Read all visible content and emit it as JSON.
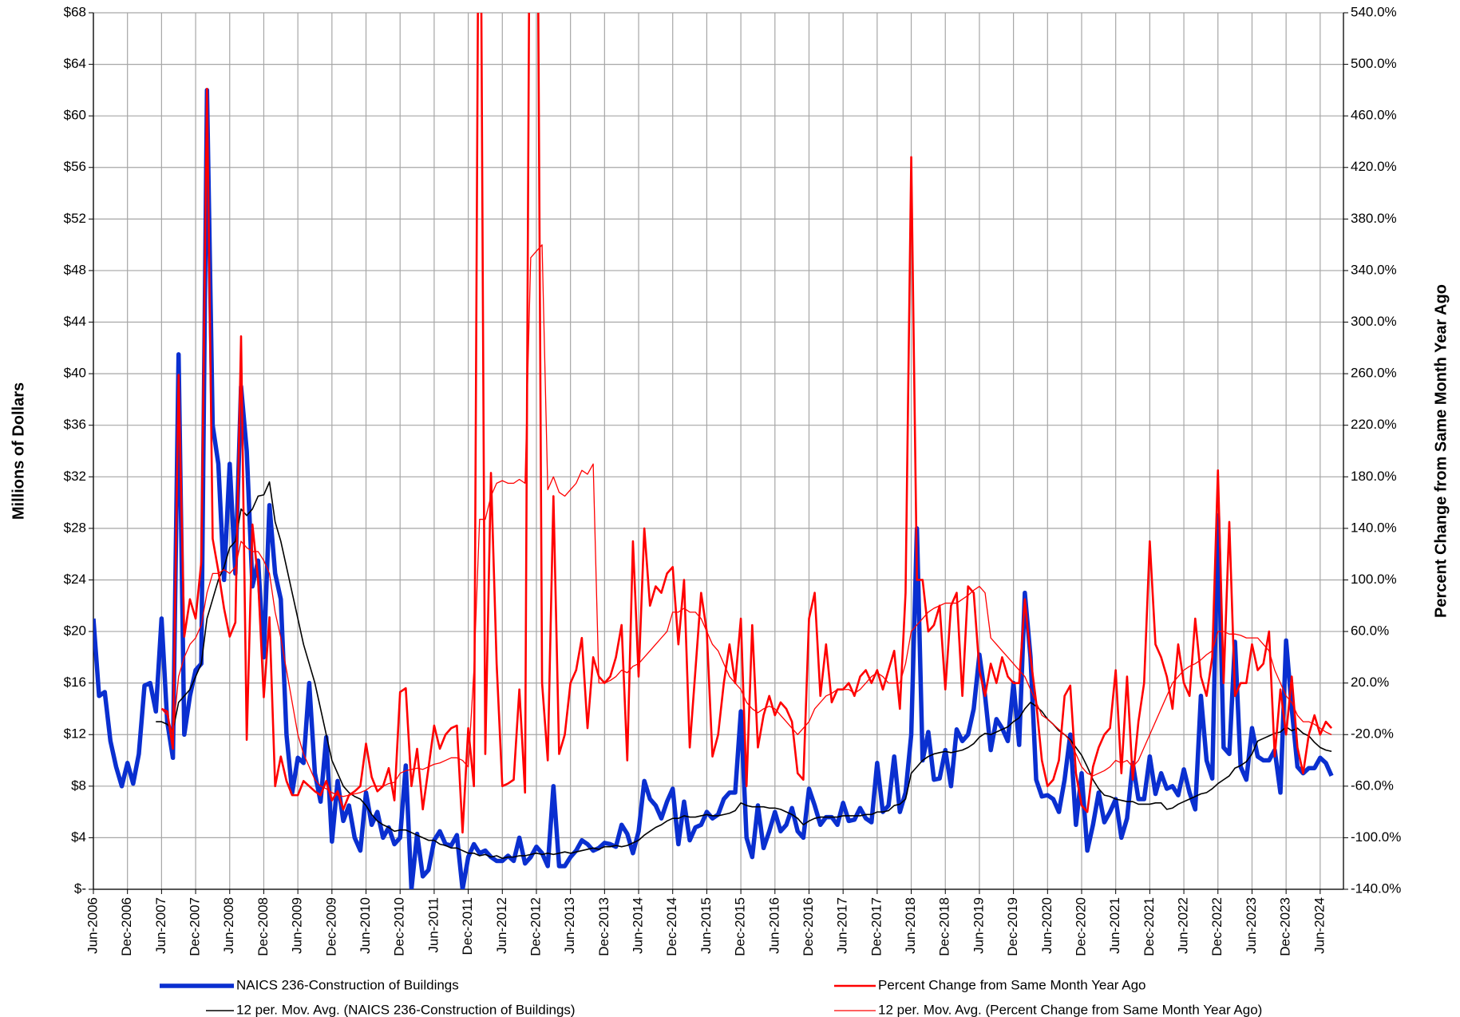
{
  "chart_data": {
    "type": "line",
    "ylabel": "Millions of Dollars",
    "y2label": "Percent Change from Same Month Year Ago",
    "categories": [
      "Jun-2006",
      null,
      null,
      null,
      null,
      null,
      "Dec-2006",
      null,
      null,
      null,
      null,
      null,
      "Jun-2007",
      null,
      null,
      null,
      null,
      null,
      "Dec-2007",
      null,
      null,
      null,
      null,
      null,
      "Jun-2008",
      null,
      null,
      null,
      null,
      null,
      "Dec-2008",
      null,
      null,
      null,
      null,
      null,
      "Jun-2009",
      null,
      null,
      null,
      null,
      null,
      "Dec-2009",
      null,
      null,
      null,
      null,
      null,
      "Jun-2010",
      null,
      null,
      null,
      null,
      null,
      "Dec-2010",
      null,
      null,
      null,
      null,
      null,
      "Jun-2011",
      null,
      null,
      null,
      null,
      null,
      "Dec-2011",
      null,
      null,
      null,
      null,
      null,
      "Jun-2012",
      null,
      null,
      null,
      null,
      null,
      "Dec-2012",
      null,
      null,
      null,
      null,
      null,
      "Jun-2013",
      null,
      null,
      null,
      null,
      null,
      "Dec-2013",
      null,
      null,
      null,
      null,
      null,
      "Jun-2014",
      null,
      null,
      null,
      null,
      null,
      "Dec-2014",
      null,
      null,
      null,
      null,
      null,
      "Jun-2015",
      null,
      null,
      null,
      null,
      null,
      "Dec-2015",
      null,
      null,
      null,
      null,
      null,
      "Jun-2016",
      null,
      null,
      null,
      null,
      null,
      "Dec-2016",
      null,
      null,
      null,
      null,
      null,
      "Jun-2017",
      null,
      null,
      null,
      null,
      null,
      "Dec-2017",
      null,
      null,
      null,
      null,
      null,
      "Jun-2018",
      null,
      null,
      null,
      null,
      null,
      "Dec-2018",
      null,
      null,
      null,
      null,
      null,
      "Jun-2019",
      null,
      null,
      null,
      null,
      null,
      "Dec-2019",
      null,
      null,
      null,
      null,
      null,
      "Jun-2020",
      null,
      null,
      null,
      null,
      null,
      "Dec-2020",
      null,
      null,
      null,
      null,
      null,
      "Jun-2021",
      null,
      null,
      null,
      null,
      null,
      "Dec-2021",
      null,
      null,
      null,
      null,
      null,
      "Jun-2022",
      null,
      null,
      null,
      null,
      null,
      "Dec-2022",
      null,
      null,
      null,
      null,
      null,
      "Jun-2023",
      null,
      null,
      null,
      null,
      null,
      "Dec-2023",
      null,
      null,
      null,
      null,
      null,
      "Jun-2024",
      null,
      null
    ],
    "series": [
      {
        "name": "NAICS 236-Construction of Buildings",
        "color": "#0a2fd0",
        "axis": "y",
        "values": [
          21,
          15,
          15.3,
          11.5,
          9.5,
          8,
          9.8,
          8.2,
          10.5,
          15.8,
          16,
          13.8,
          21,
          13,
          10.2,
          41.5,
          12,
          15,
          17,
          17.5,
          62,
          36,
          33,
          24,
          33,
          24.5,
          39,
          34,
          23.5,
          25.5,
          18,
          29.8,
          24.5,
          22.5,
          12,
          7.5,
          10.2,
          9.8,
          16,
          9,
          6.8,
          11.8,
          3.7,
          8.4,
          5.3,
          6.5,
          4,
          3,
          7.5,
          5,
          6,
          4,
          4.8,
          3.5,
          4,
          9.6,
          0,
          4.3,
          1,
          1.5,
          3.8,
          4.5,
          3.5,
          3.4,
          4.2,
          0,
          2.5,
          3.5,
          2.8,
          3,
          2.5,
          2.2,
          2.2,
          2.6,
          2.2,
          4,
          2,
          2.5,
          3.3,
          2.8,
          1.8,
          8,
          1.8,
          1.8,
          2.5,
          3,
          3.8,
          3.5,
          3,
          3.2,
          3.6,
          3.5,
          3.3,
          5,
          4.3,
          2.8,
          4.5,
          8.4,
          7,
          6.5,
          5.5,
          6.8,
          7.8,
          3.5,
          6.8,
          3.8,
          4.8,
          5,
          6,
          5.5,
          5.8,
          7,
          7.5,
          7.5,
          13.8,
          4,
          2.5,
          6.5,
          3.2,
          4.5,
          6,
          4.5,
          5,
          6.3,
          4.5,
          4,
          7.8,
          6.5,
          5,
          5.6,
          5.6,
          5,
          6.7,
          5.3,
          5.4,
          6.3,
          5.5,
          5.2,
          9.8,
          6,
          6.5,
          10.3,
          6,
          7.5,
          12,
          28,
          10,
          12.2,
          8.5,
          8.6,
          10.8,
          8,
          12.4,
          11.5,
          12,
          14,
          18.2,
          15,
          10.8,
          13.2,
          12.5,
          11.5,
          16,
          11.2,
          23,
          18,
          8.5,
          7.2,
          7.3,
          7,
          6,
          8.5,
          12,
          5,
          9,
          3,
          5,
          7.5,
          5.2,
          6,
          7,
          4,
          5.5,
          9.8,
          7,
          7,
          10.3,
          7.4,
          9,
          7.8,
          8,
          7.3,
          9.3,
          7.5,
          6.2,
          15,
          10,
          8.6,
          29,
          11,
          10.5,
          19.2,
          9.5,
          8.5,
          12.5,
          10.3,
          10,
          10,
          10.8,
          7.5,
          19.3,
          14,
          9.5,
          9,
          9.4,
          9.4,
          10.2,
          9.8,
          8.8
        ]
      },
      {
        "name": "12 per. Mov. Avg. (NAICS 236-Construction of Buildings)",
        "color": "#000000",
        "axis": "y",
        "values": [
          null,
          null,
          null,
          null,
          null,
          null,
          null,
          null,
          null,
          null,
          null,
          13,
          13,
          12.8,
          12.3,
          14.5,
          15,
          15.5,
          16.5,
          17.5,
          21,
          22.5,
          24,
          25,
          26.5,
          27,
          29.5,
          29,
          29.5,
          30.5,
          30.6,
          31.6,
          28.5,
          27,
          25,
          23,
          21,
          19,
          17.5,
          16,
          14,
          12,
          10,
          9,
          8,
          7.5,
          7.2,
          7,
          6.5,
          5.8,
          5.3,
          5,
          4.8,
          4.5,
          4.6,
          4.6,
          4.4,
          4.2,
          4,
          3.8,
          3.8,
          3.5,
          3.4,
          3.2,
          3.2,
          3,
          2.8,
          2.8,
          2.6,
          2.7,
          2.5,
          2.6,
          2.4,
          2.5,
          2.5,
          2.6,
          2.6,
          2.7,
          2.8,
          2.7,
          2.8,
          2.7,
          2.8,
          2.9,
          2.8,
          2.9,
          3,
          3.1,
          3.2,
          3.1,
          3.3,
          3.3,
          3.4,
          3.3,
          3.4,
          3.6,
          3.8,
          4.2,
          4.5,
          4.8,
          5,
          5.3,
          5.5,
          5.5,
          5.7,
          5.6,
          5.6,
          5.7,
          5.8,
          5.7,
          5.7,
          5.8,
          5.9,
          6.1,
          6.7,
          6.5,
          6.4,
          6.4,
          6.4,
          6.3,
          6.3,
          6.2,
          6,
          5.8,
          5.5,
          5,
          5.3,
          5.5,
          5.6,
          5.6,
          5.6,
          5.6,
          5.7,
          5.7,
          5.7,
          5.7,
          5.8,
          5.8,
          6,
          6,
          6.1,
          6.5,
          6.6,
          7,
          9,
          9.5,
          10,
          10.3,
          10.5,
          10.6,
          10.7,
          10.6,
          10.7,
          10.8,
          11,
          11.3,
          11.8,
          12.1,
          12,
          12.2,
          12.4,
          12.6,
          13,
          13.3,
          14,
          14.5,
          14.2,
          13.8,
          13.2,
          12.8,
          12.3,
          12,
          11.6,
          11,
          10.4,
          9.5,
          8.5,
          7.8,
          7.3,
          7.2,
          7,
          6.9,
          6.8,
          6.8,
          6.6,
          6.6,
          6.6,
          6.7,
          6.7,
          6.2,
          6.3,
          6.6,
          6.8,
          7,
          7.2,
          7.4,
          7.5,
          7.8,
          8.2,
          8.5,
          8.8,
          9.4,
          9.6,
          9.9,
          10.5,
          11.5,
          11.7,
          11.9,
          12.1,
          12.2,
          12.6,
          12.3,
          12.5,
          12.1,
          11.9,
          11.4,
          11,
          10.8,
          10.7
        ]
      },
      {
        "name": "Percent Change from Same Month Year Ago",
        "color": "#ff0000",
        "axis": "y2",
        "values": [
          null,
          null,
          null,
          null,
          null,
          null,
          null,
          null,
          null,
          null,
          null,
          null,
          0,
          -2,
          -31,
          259,
          56,
          85,
          70,
          114,
          481,
          132,
          107,
          78,
          56,
          67,
          289,
          -24,
          143,
          100,
          9,
          71,
          -60,
          -37,
          -56,
          -67,
          -67,
          -56,
          -60,
          -64,
          -67,
          -56,
          -71,
          -64,
          -78,
          -67,
          -64,
          -60,
          -27,
          -53,
          -64,
          -60,
          -46,
          -71,
          13,
          16,
          -60,
          -31,
          -78,
          -46,
          -13,
          -31,
          -20,
          -15,
          -13,
          -96,
          -15,
          -60,
          800,
          -35,
          183,
          35,
          -60,
          -58,
          -55,
          15,
          -65,
          800,
          800,
          20,
          -40,
          165,
          -35,
          -20,
          20,
          30,
          55,
          -15,
          40,
          25,
          20,
          25,
          40,
          65,
          -40,
          130,
          25,
          140,
          80,
          95,
          90,
          105,
          110,
          50,
          100,
          -30,
          30,
          90,
          60,
          -37,
          -20,
          20,
          50,
          20,
          70,
          -60,
          65,
          -30,
          -5,
          10,
          -5,
          5,
          0,
          -10,
          -50,
          -55,
          70,
          90,
          10,
          50,
          5,
          15,
          15,
          20,
          10,
          25,
          30,
          20,
          30,
          15,
          30,
          45,
          0,
          90,
          428,
          100,
          100,
          60,
          65,
          80,
          15,
          80,
          90,
          10,
          95,
          90,
          30,
          10,
          35,
          20,
          40,
          25,
          20,
          20,
          85,
          40,
          5,
          -40,
          -60,
          -55,
          -40,
          10,
          18,
          -50,
          -75,
          -80,
          -45,
          -30,
          -20,
          -15,
          30,
          -50,
          25,
          -55,
          -10,
          20,
          130,
          50,
          40,
          25,
          0,
          50,
          20,
          10,
          70,
          25,
          10,
          40,
          185,
          20,
          145,
          10,
          20,
          20,
          50,
          30,
          35,
          60,
          -37,
          15,
          -20,
          25,
          -30,
          -50,
          -20,
          -5,
          -20,
          -10,
          -15
        ]
      },
      {
        "name": "12 per. Mov. Avg. (Percent Change from Same Month Year Ago)",
        "color": "#ff0000",
        "axis": "y2",
        "values": [
          null,
          null,
          null,
          null,
          null,
          null,
          null,
          null,
          null,
          null,
          null,
          null,
          0,
          -5,
          -20,
          25,
          40,
          50,
          55,
          65,
          90,
          105,
          105,
          108,
          105,
          110,
          130,
          125,
          122,
          122,
          115,
          105,
          75,
          55,
          30,
          5,
          -20,
          -35,
          -45,
          -55,
          -60,
          -62,
          -65,
          -67,
          -68,
          -67,
          -66,
          -65,
          -63,
          -60,
          -60,
          -60,
          -58,
          -57,
          -50,
          -48,
          -47,
          -46,
          -47,
          -45,
          -43,
          -42,
          -40,
          -38,
          -38,
          -40,
          -45,
          30,
          147,
          147,
          165,
          175,
          177,
          175,
          175,
          178,
          175,
          350,
          355,
          360,
          170,
          180,
          168,
          165,
          170,
          175,
          185,
          182,
          190,
          20,
          20,
          22,
          25,
          30,
          28,
          33,
          35,
          40,
          45,
          50,
          55,
          60,
          75,
          75,
          78,
          75,
          75,
          70,
          60,
          50,
          45,
          35,
          25,
          20,
          15,
          5,
          0,
          -3,
          0,
          2,
          0,
          -5,
          -10,
          -15,
          -20,
          -15,
          -10,
          0,
          5,
          10,
          12,
          15,
          15,
          15,
          12,
          15,
          20,
          25,
          28,
          25,
          20,
          20,
          20,
          35,
          60,
          65,
          70,
          75,
          78,
          80,
          82,
          82,
          82,
          85,
          88,
          92,
          95,
          90,
          55,
          50,
          45,
          40,
          35,
          30,
          25,
          15,
          5,
          -5,
          -8,
          -12,
          -16,
          -20,
          -25,
          -35,
          -45,
          -50,
          -52,
          -50,
          -48,
          -45,
          -40,
          -42,
          -40,
          -45,
          -40,
          -30,
          -20,
          -10,
          0,
          10,
          20,
          25,
          30,
          33,
          35,
          38,
          42,
          45,
          60,
          60,
          58,
          58,
          57,
          55,
          55,
          55,
          50,
          45,
          30,
          20,
          10,
          5,
          -5,
          -10,
          -10,
          -12,
          -15,
          -18,
          -20
        ]
      }
    ],
    "ylim": [
      0,
      68
    ],
    "yticks": [
      {
        "value": 0,
        "label": "$-"
      },
      {
        "value": 4,
        "label": "$4"
      },
      {
        "value": 8,
        "label": "$8"
      },
      {
        "value": 12,
        "label": "$12"
      },
      {
        "value": 16,
        "label": "$16"
      },
      {
        "value": 20,
        "label": "$20"
      },
      {
        "value": 24,
        "label": "$24"
      },
      {
        "value": 28,
        "label": "$28"
      },
      {
        "value": 32,
        "label": "$32"
      },
      {
        "value": 36,
        "label": "$36"
      },
      {
        "value": 40,
        "label": "$40"
      },
      {
        "value": 44,
        "label": "$44"
      },
      {
        "value": 48,
        "label": "$48"
      },
      {
        "value": 52,
        "label": "$52"
      },
      {
        "value": 56,
        "label": "$56"
      },
      {
        "value": 60,
        "label": "$60"
      },
      {
        "value": 64,
        "label": "$64"
      },
      {
        "value": 68,
        "label": "$68"
      }
    ],
    "y2lim": [
      -140,
      540
    ],
    "y2ticks": [
      {
        "value": -140,
        "label": "-140.0%"
      },
      {
        "value": -100,
        "label": "-100.0%"
      },
      {
        "value": -60,
        "label": "-60.0%"
      },
      {
        "value": -20,
        "label": "-20.0%"
      },
      {
        "value": 20,
        "label": "20.0%"
      },
      {
        "value": 60,
        "label": "60.0%"
      },
      {
        "value": 100,
        "label": "100.0%"
      },
      {
        "value": 140,
        "label": "140.0%"
      },
      {
        "value": 180,
        "label": "180.0%"
      },
      {
        "value": 220,
        "label": "220.0%"
      },
      {
        "value": 260,
        "label": "260.0%"
      },
      {
        "value": 300,
        "label": "300.0%"
      },
      {
        "value": 340,
        "label": "340.0%"
      },
      {
        "value": 380,
        "label": "380.0%"
      },
      {
        "value": 420,
        "label": "420.0%"
      },
      {
        "value": 460,
        "label": "460.0%"
      },
      {
        "value": 500,
        "label": "500.0%"
      },
      {
        "value": 540,
        "label": "540.0%"
      }
    ],
    "grid": true
  }
}
